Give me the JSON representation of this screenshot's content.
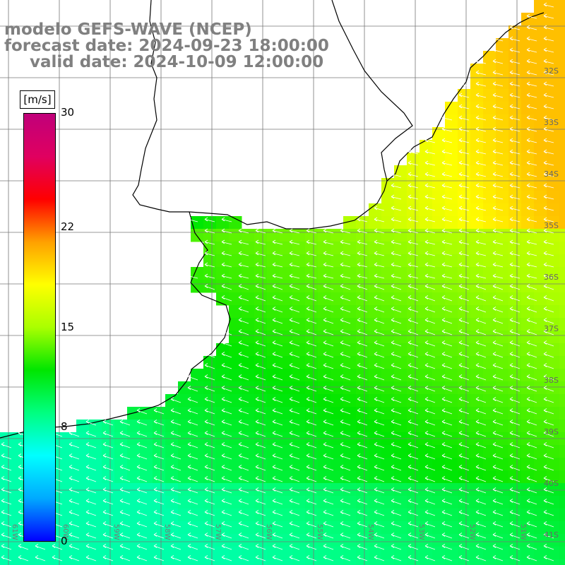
{
  "title": {
    "model": "modelo GEFS-WAVE (NCEP)",
    "forecast": "forecast date: 2024-09-23 18:00:00",
    "valid": "valid date: 2024-10-09 12:00:00"
  },
  "colorbar": {
    "unit": "[m/s]",
    "min": 0,
    "max": 30,
    "tick_labels": [
      "0",
      "8",
      "15",
      "22",
      "30"
    ],
    "tick_values": [
      0,
      8,
      15,
      22,
      30
    ],
    "stops": [
      "#0000ff",
      "#00aaff",
      "#00ffff",
      "#00ff80",
      "#00e600",
      "#aaff00",
      "#ffff00",
      "#ffa000",
      "#ff0000",
      "#e00060",
      "#c0007a"
    ]
  },
  "map": {
    "variable": "wind speed",
    "arrow_color": "#ffffff",
    "lat_labels": [
      "32S",
      "33S",
      "34S",
      "35S",
      "36S",
      "37S",
      "38S",
      "39S",
      "40S",
      "41S"
    ],
    "lon_labels": [
      "61W",
      "60W",
      "59W",
      "58W",
      "57W",
      "56W",
      "55W",
      "54W",
      "53W",
      "52W",
      "51W"
    ]
  }
}
